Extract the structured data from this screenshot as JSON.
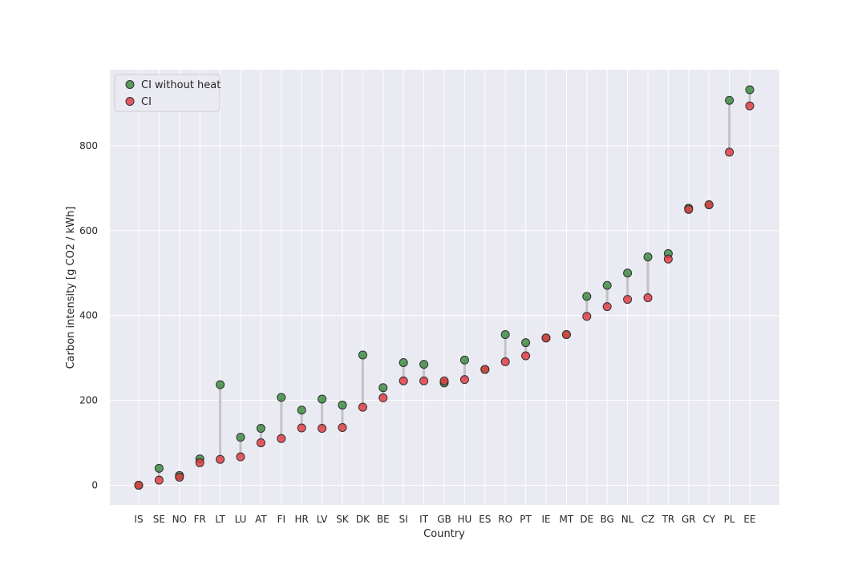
{
  "chart_data": {
    "type": "scatter",
    "xlabel": "Country",
    "ylabel": "Carbon intensity [g CO2 / kWh]",
    "ylim": [
      -45,
      980
    ],
    "yticks": [
      0,
      200,
      400,
      600,
      800
    ],
    "grid": true,
    "legend_position": "top-left",
    "categories": [
      "IS",
      "SE",
      "NO",
      "FR",
      "LT",
      "LU",
      "AT",
      "FI",
      "HR",
      "LV",
      "SK",
      "DK",
      "BE",
      "SI",
      "IT",
      "GB",
      "HU",
      "ES",
      "RO",
      "PT",
      "IE",
      "MT",
      "DE",
      "BG",
      "NL",
      "CZ",
      "TR",
      "GR",
      "CY",
      "PL",
      "EE"
    ],
    "series": [
      {
        "name": "CI without heat",
        "color": "#3a8a3e",
        "values": [
          0,
          40,
          23,
          62,
          237,
          113,
          134,
          207,
          177,
          203,
          189,
          307,
          230,
          289,
          285,
          241,
          295,
          273,
          355,
          336,
          347,
          355,
          445,
          471,
          500,
          538,
          546,
          653,
          661,
          907,
          932
        ]
      },
      {
        "name": "CI",
        "color": "#e0393e",
        "values": [
          0,
          12,
          19,
          53,
          61,
          67,
          100,
          110,
          135,
          134,
          136,
          184,
          206,
          246,
          246,
          246,
          249,
          273,
          291,
          305,
          347,
          355,
          398,
          421,
          438,
          442,
          533,
          650,
          661,
          785,
          894
        ]
      }
    ]
  }
}
